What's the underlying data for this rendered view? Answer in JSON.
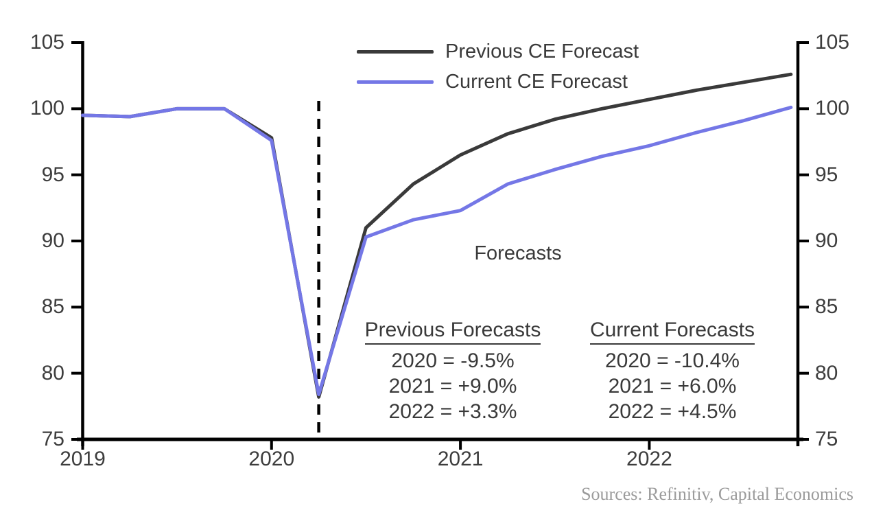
{
  "chart_data": {
    "type": "line",
    "title": "",
    "xlabel": "",
    "ylabel": "",
    "frequency": "quarterly",
    "x_values": [
      2019.0,
      2019.25,
      2019.5,
      2019.75,
      2020.0,
      2020.25,
      2020.5,
      2020.75,
      2021.0,
      2021.25,
      2021.5,
      2021.75,
      2022.0,
      2022.25,
      2022.5,
      2022.75
    ],
    "series": [
      {
        "name": "Previous CE Forecast",
        "color": "#3a3a3a",
        "values": [
          99.5,
          99.4,
          100.0,
          100.0,
          97.8,
          78.2,
          91.0,
          94.3,
          96.5,
          98.1,
          99.2,
          100.0,
          100.7,
          101.4,
          102.0,
          102.6
        ]
      },
      {
        "name": "Current CE Forecast",
        "color": "#7477e6",
        "values": [
          99.5,
          99.4,
          100.0,
          100.0,
          97.6,
          78.4,
          90.3,
          91.6,
          92.3,
          94.3,
          95.4,
          96.4,
          97.2,
          98.2,
          99.1,
          100.1
        ]
      }
    ],
    "ylim": [
      75,
      105
    ],
    "xlim": [
      2019,
      2022.8
    ],
    "y_ticks": [
      75,
      80,
      85,
      90,
      95,
      100,
      105
    ],
    "x_ticks": {
      "values": [
        2019,
        2020,
        2021,
        2022
      ],
      "labels": [
        "2019",
        "2020",
        "2021",
        "2022"
      ]
    },
    "y_axis_on_both_sides": true,
    "grid": false,
    "dashed_vline_x": 2020.25,
    "legend_position": "top-center"
  },
  "annotations": {
    "forecasts_label": "Forecasts",
    "previous_block": {
      "title": "Previous Forecasts",
      "rows": [
        "2020 = -9.5%",
        "2021 = +9.0%",
        "2022 = +3.3%"
      ]
    },
    "current_block": {
      "title": "Current Forecasts",
      "rows": [
        "2020 = -10.4%",
        "2021 = +6.0%",
        "2022 = +4.5%"
      ]
    }
  },
  "source": "Sources: Refinitiv, Capital Economics",
  "colors": {
    "axis": "#000000",
    "tick_label": "#3d3d3d",
    "annotation": "#3a3a3a",
    "source_text": "#9b9b9b",
    "background": "#ffffff"
  }
}
